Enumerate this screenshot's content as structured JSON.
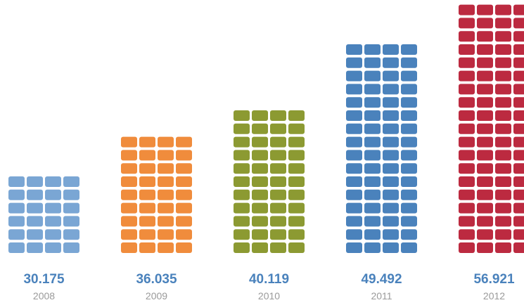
{
  "chart_data": {
    "type": "bar",
    "style": "pictogram tile columns",
    "categories": [
      "2008",
      "2009",
      "2010",
      "2011",
      "2012"
    ],
    "values": [
      30.175,
      36.035,
      40.119,
      49.492,
      56.921
    ],
    "value_labels": [
      "30.175",
      "36.035",
      "40.119",
      "49.492",
      "56.921"
    ],
    "tile_rows": [
      6,
      9,
      11,
      16,
      19
    ],
    "tile_columns": 4,
    "colors": [
      "#7aa6d4",
      "#f08c3c",
      "#8c9a32",
      "#4a82bc",
      "#bc2a40"
    ],
    "value_label_color": "#4a82bc",
    "year_label_color": "#9a9a9a",
    "grid": false,
    "legend": "none",
    "title": "",
    "xlabel": "",
    "ylabel": ""
  }
}
